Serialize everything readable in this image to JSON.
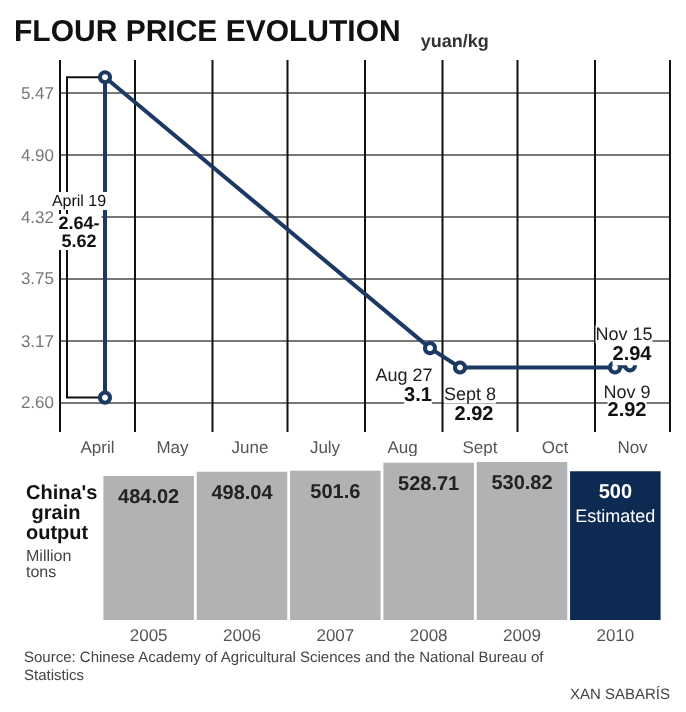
{
  "chart_data": [
    {
      "type": "line",
      "title": "FLOUR PRICE EVOLUTION",
      "ylabel": "yuan/kg",
      "x": [
        "--04-19",
        "--04-19",
        "--08-27",
        "--09-08",
        "--11-09",
        "--11-15"
      ],
      "series": [
        {
          "color": "#1b3a63",
          "values": [
            2.64,
            5.62,
            3.1,
            2.92,
            2.92,
            2.94
          ],
          "value_labels": [
            null,
            null,
            "3.1",
            "2.92",
            "2.92",
            "2.94"
          ]
        }
      ],
      "xlim": [
        "--04-01",
        "--12-01"
      ],
      "xticks": [
        {
          "value": "--04-01",
          "label": null
        },
        {
          "value": "--04-16",
          "label": "April"
        },
        {
          "value": "--05-01",
          "label": null
        },
        {
          "value": "--05-16",
          "label": "May"
        },
        {
          "value": "--06-01",
          "label": null
        },
        {
          "value": "--06-16",
          "label": "June"
        },
        {
          "value": "--07-01",
          "label": null
        },
        {
          "value": "--07-16",
          "label": "July"
        },
        {
          "value": "--08-01",
          "label": null
        },
        {
          "value": "--08-16",
          "label": "Aug"
        },
        {
          "value": "--09-01",
          "label": null
        },
        {
          "value": "--09-16",
          "label": "Sept"
        },
        {
          "value": "--10-01",
          "label": null
        },
        {
          "value": "--10-16",
          "label": "Oct"
        },
        {
          "value": "--11-01",
          "label": null
        },
        {
          "value": "--11-16",
          "label": "Nov"
        },
        {
          "value": "--12-01",
          "label": null
        }
      ],
      "ylim": [
        2.32,
        5.78
      ],
      "yticks": [
        {
          "value": 2.6,
          "label": "2.60"
        },
        3.17,
        3.75,
        4.32,
        {
          "value": 4.9,
          "label": "4.90"
        },
        5.47
      ],
      "annotations": [
        "April 19",
        "2.64-5.62",
        {
          "text": "Aug 27",
          "x": "--08-27",
          "y": 3.1
        },
        {
          "text": "Sept 8",
          "x": "--09-08",
          "y": 2.92
        },
        {
          "text": "Nov 9",
          "x": "--11-09",
          "y": 2.92
        },
        {
          "text": "Nov 15",
          "x": "--11-15",
          "y": 2.94
        }
      ],
      "grid": true,
      "marker": "circle",
      "line_style": "solid"
    },
    {
      "type": "bar",
      "title": "China's grain output",
      "ylabel": "Million tons",
      "categories": [
        "2005",
        "2006",
        "2007",
        "2008",
        "2009",
        "2010"
      ],
      "values": [
        484.02,
        498.04,
        501.6,
        528.71,
        530.82,
        500
      ],
      "colors": [
        "#b0b2b4",
        "#b0b2b4",
        "#b0b2b4",
        "#b0b2b4",
        "#b0b2b4",
        "#0d2b52"
      ],
      "data_labels": true,
      "annotations": [
        {
          "text": "Estimated",
          "x": "2010",
          "y": 500
        },
        "Source: Chinese Academy of Agricultural Sciences and the National Bureau of Statistics",
        "XAN SABARÍS"
      ]
    }
  ]
}
